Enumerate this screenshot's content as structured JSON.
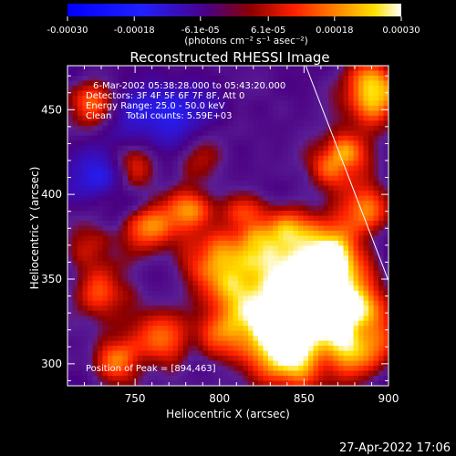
{
  "chart_data": {
    "type": "heatmap",
    "title": "Reconstructed RHESSI Image",
    "xlabel": "Heliocentric X (arcsec)",
    "ylabel": "Heliocentric Y (arcsec)",
    "xlim": [
      710,
      900
    ],
    "ylim": [
      287,
      476
    ],
    "x_ticks": [
      750,
      800,
      850,
      900
    ],
    "y_ticks": [
      300,
      350,
      400,
      450
    ],
    "colorbar": {
      "range": [
        -0.0003,
        0.0003
      ],
      "tick_labels": [
        "-0.00030",
        "-0.00018",
        "-6.1e-05",
        "6.1e-05",
        "0.00018",
        "0.00030"
      ],
      "tick_values": [
        -0.0003,
        -0.00018,
        -6.1e-05,
        6.1e-05,
        0.00018,
        0.0003
      ],
      "units_text": "(photons cm⁻² s⁻¹ asec⁻²)"
    },
    "annotation_lines": [
      "6-Mar-2002 05:38:28.000 to 05:43:20.000",
      "Detectors: 3F 4F 5F 6F 7F 8F, Att 0",
      "Energy Range: 25.0 - 50.0 keV",
      "Clean     Total counts: 5.59E+03"
    ],
    "peak_label": "Position of Peak = [894,463]",
    "peak_position": [
      894,
      463
    ],
    "limb_line": [
      [
        851,
        476
      ],
      [
        900,
        349
      ]
    ],
    "grid": false,
    "timestamp": "27-Apr-2022 17:06",
    "colors": {
      "background": "#000000",
      "text": "#ffffff",
      "colormap_low": "#0000ff",
      "colormap_mid": "#4b0082",
      "colormap_high": "#ffffff"
    }
  }
}
